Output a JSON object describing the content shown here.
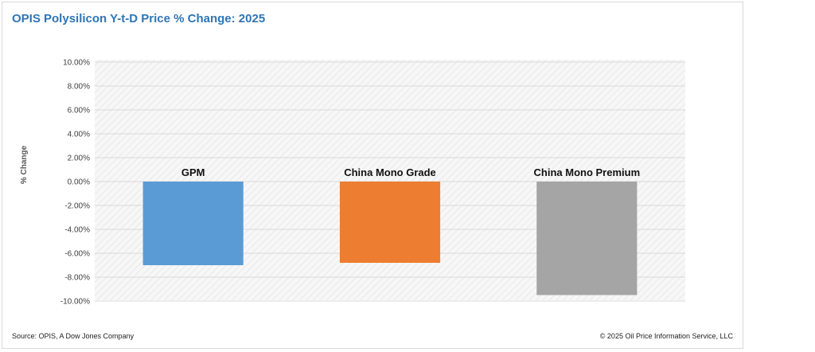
{
  "chart_data": {
    "type": "bar",
    "title": "OPIS Polysilicon Y-t-D Price % Change: 2025",
    "ylabel": "% Change",
    "xlabel": "",
    "categories": [
      "GPM",
      "China Mono Grade",
      "China Mono Premium"
    ],
    "values": [
      -7.0,
      -6.8,
      -9.5
    ],
    "colors": [
      "#5b9bd5",
      "#ed7d31",
      "#a5a5a5"
    ],
    "ylim": [
      -10,
      10
    ],
    "ytick_step": 2,
    "ytick_format": "percent-2dp",
    "grid": true,
    "legend": "none",
    "category_labels_position": "above-zero-line"
  },
  "footer": {
    "source": "Source: OPIS, A Dow Jones Company",
    "copyright": "© 2025 Oil Price Information Service, LLC"
  },
  "style": {
    "title_color": "#2e75b6",
    "plot_background": "#f2f2f2",
    "gridline_color": "#d9d9d9"
  }
}
